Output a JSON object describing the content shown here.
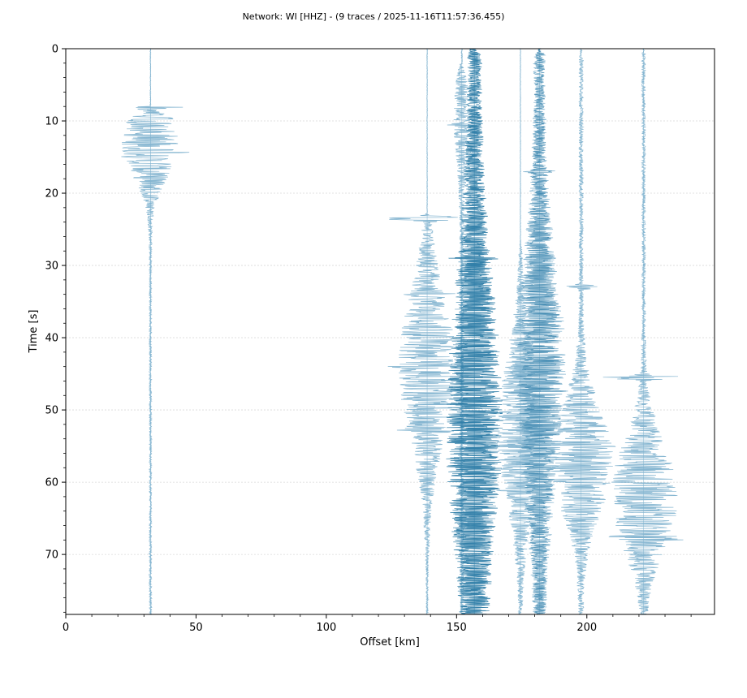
{
  "chart_data": {
    "type": "seismic-section",
    "title": "Network: WI [HHZ] - (9 traces / 2025-11-16T11:57:36.455)",
    "xlabel": "Offset [km]",
    "ylabel": "Time [s]",
    "xlim": [
      0,
      249
    ],
    "ylim": [
      78.3,
      0
    ],
    "y_inverted": true,
    "xticks": [
      0,
      50,
      100,
      150,
      200
    ],
    "yticks": [
      0,
      10,
      20,
      30,
      40,
      50,
      60,
      70
    ],
    "grid": "horizontal-dashed",
    "legend": "none",
    "colors": {
      "light": "#7fb2cf",
      "dark": "#2f7ea8",
      "grid": "#d9d9d9"
    },
    "traces": [
      {
        "offset": 32.5,
        "onset": 8.0,
        "peak_time": 13.0,
        "half_width": 6.5,
        "max_amp": 11.0,
        "baseline": 0.4,
        "shade": "light",
        "bursts": [
          [
            8.0,
            16.0
          ],
          [
            14.3,
            13.0
          ],
          [
            15.0,
            11.0
          ],
          [
            12.0,
            10.0
          ]
        ]
      },
      {
        "offset": 138.7,
        "onset": 22.8,
        "peak_time": 44.0,
        "half_width": 14.0,
        "max_amp": 11.0,
        "baseline": 0.3,
        "shade": "light",
        "bursts": [
          [
            23.5,
            15.0
          ],
          [
            44.0,
            14.5
          ],
          [
            52.8,
            14.0
          ],
          [
            34.0,
            10.0
          ]
        ]
      },
      {
        "offset": 152.0,
        "onset": 2.0,
        "peak_time": 10.0,
        "half_width": 8.0,
        "max_amp": 3.0,
        "baseline": 0.6,
        "shade": "light",
        "bursts": [
          [
            10.5,
            5.0
          ]
        ]
      },
      {
        "offset": 156.8,
        "onset": 0.0,
        "peak_time": 52.0,
        "half_width": 26.0,
        "max_amp": 10.5,
        "baseline": 2.2,
        "shade": "dark",
        "bursts": [
          [
            53.0,
            12.0
          ],
          [
            29.0,
            10.0
          ]
        ]
      },
      {
        "offset": 174.5,
        "onset": 27.0,
        "peak_time": 53.0,
        "half_width": 14.0,
        "max_amp": 9.0,
        "baseline": 0.3,
        "shade": "light",
        "bursts": [
          [
            61.0,
            11.0
          ],
          [
            55.0,
            10.0
          ]
        ]
      },
      {
        "offset": 181.8,
        "onset": 0.5,
        "peak_time": 45.0,
        "half_width": 20.0,
        "max_amp": 10.0,
        "baseline": 1.8,
        "shade": "mixed",
        "bursts": [
          [
            17.0,
            5.5
          ],
          [
            47.5,
            12.0
          ]
        ]
      },
      {
        "offset": 197.8,
        "onset": 1.0,
        "peak_time": 57.0,
        "half_width": 10.0,
        "max_amp": 12.0,
        "baseline": 0.7,
        "shade": "light",
        "bursts": [
          [
            58.0,
            13.0
          ],
          [
            55.0,
            12.0
          ],
          [
            33.0,
            7.0
          ]
        ]
      },
      {
        "offset": 221.8,
        "onset": 0.5,
        "peak_time": 62.0,
        "half_width": 10.0,
        "max_amp": 13.0,
        "baseline": 0.6,
        "shade": "light",
        "bursts": [
          [
            45.5,
            13.5
          ],
          [
            67.5,
            16.0
          ],
          [
            68.0,
            13.0
          ]
        ]
      },
      {
        "offset": 32.5,
        "onset": 0.0,
        "peak_time": 0.0,
        "half_width": 1.0,
        "max_amp": 0.0,
        "baseline": 0.0,
        "shade": "light",
        "bursts": []
      }
    ]
  }
}
